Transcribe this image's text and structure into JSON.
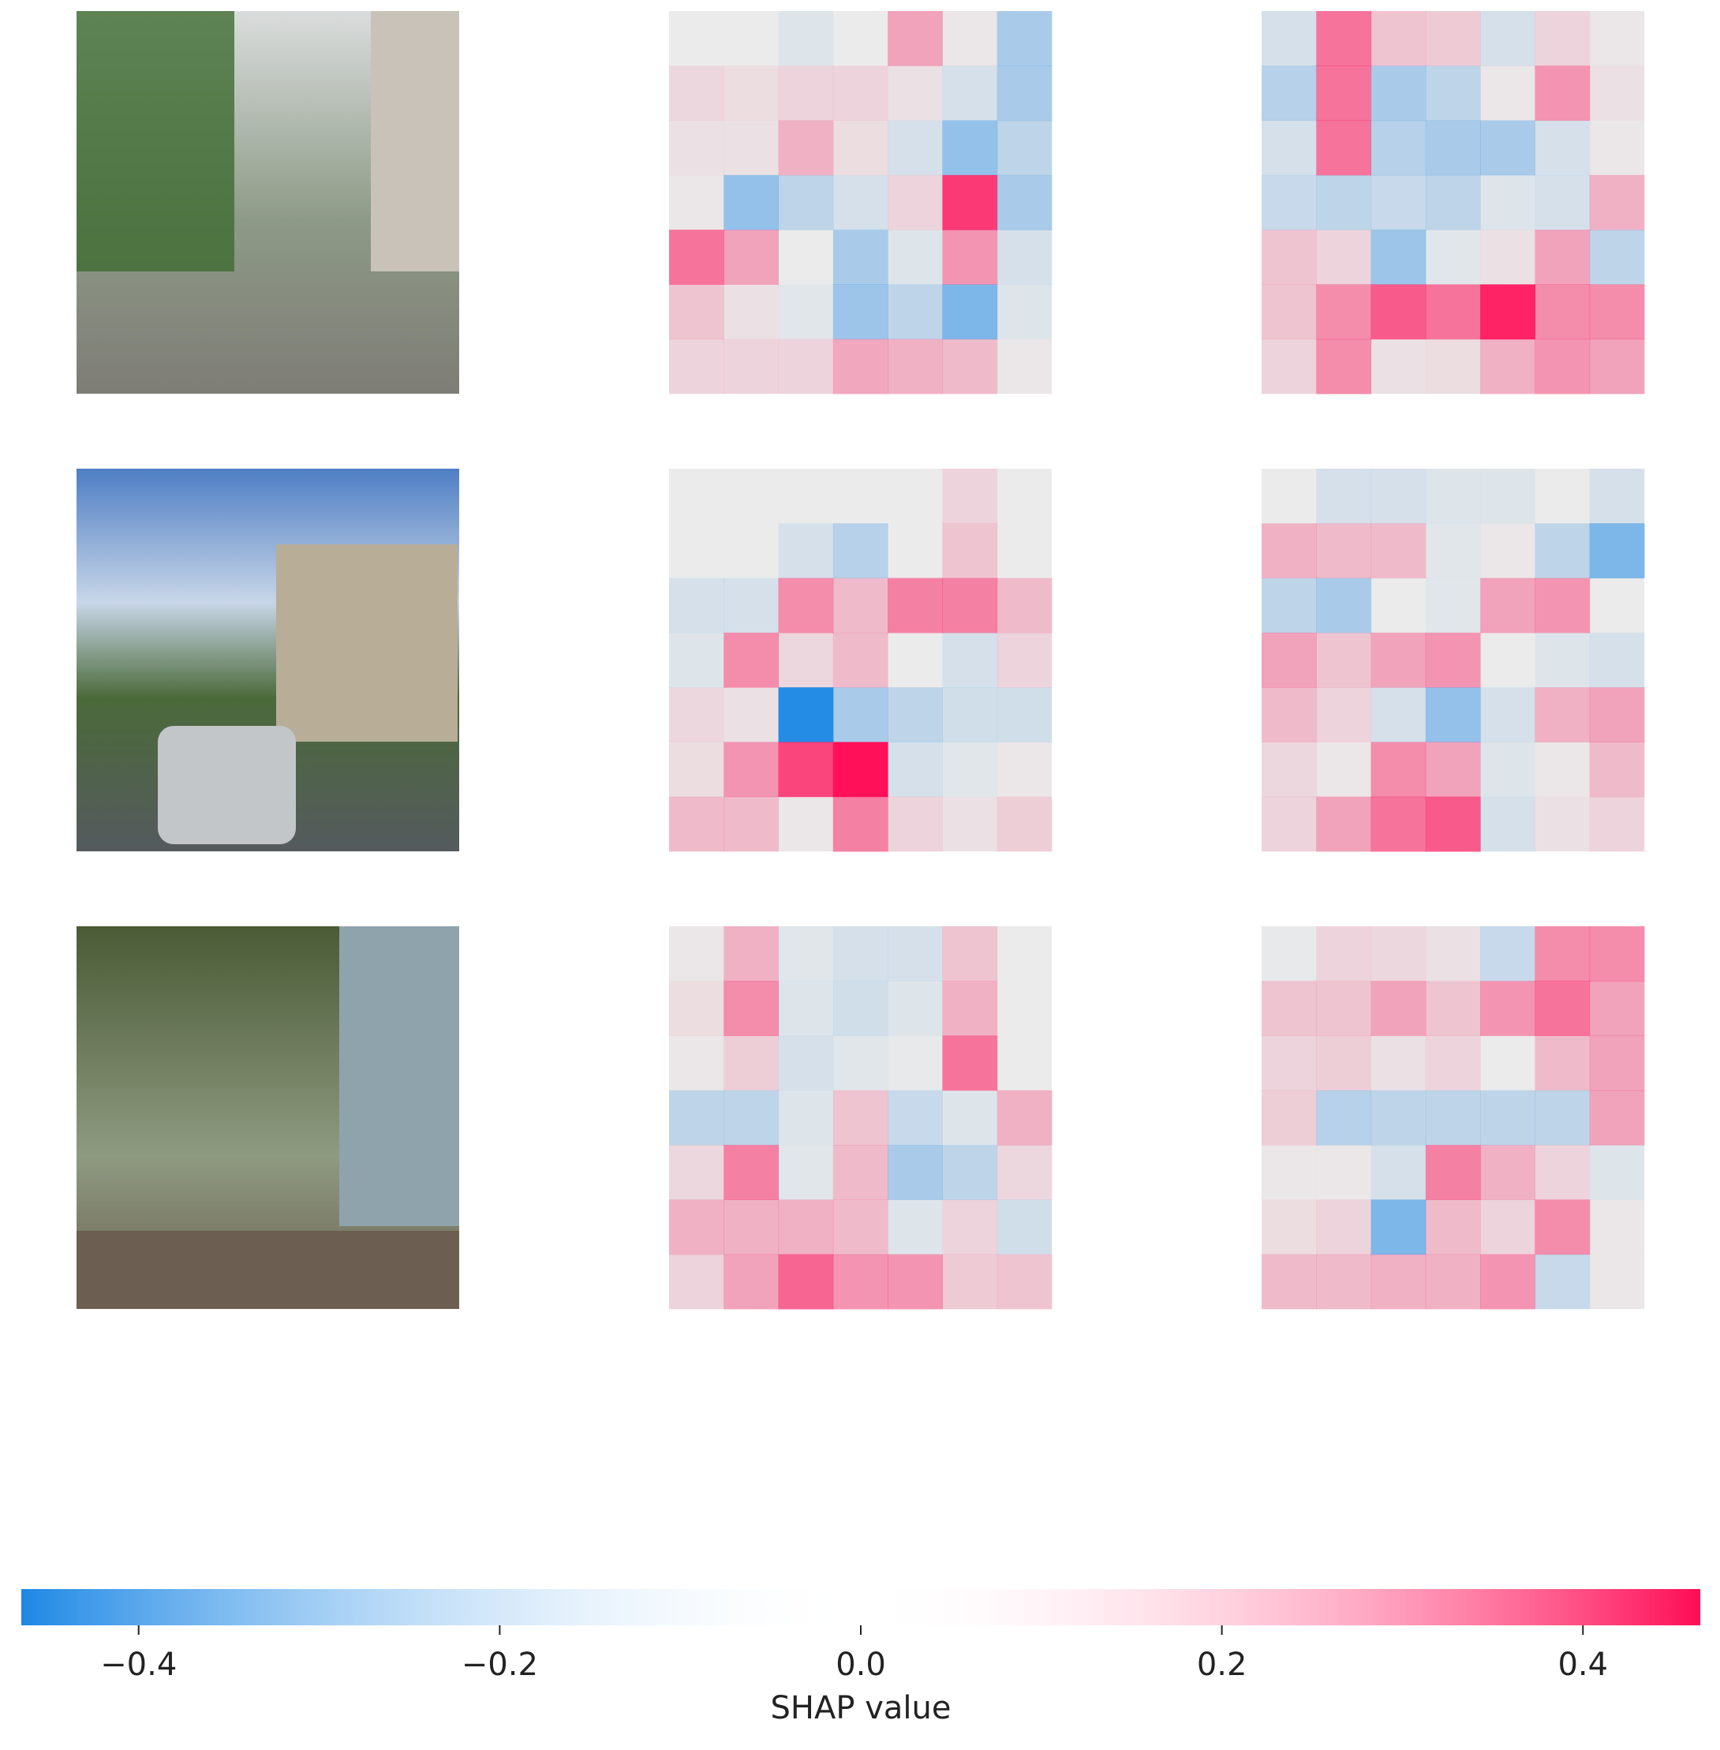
{
  "chart_data": {
    "type": "heatmap",
    "colors": [
      "#1e88e5",
      "#ffffff",
      "#ff0d57"
    ],
    "heatmaps": [
      [
        [
          [
            0,
            0,
            -0.03,
            0,
            0.15,
            0.01,
            -0.15
          ],
          [
            0.04,
            0.03,
            0.05,
            0.05,
            0.02,
            -0.05,
            -0.15
          ],
          [
            0.02,
            0.02,
            0.12,
            0.03,
            -0.05,
            -0.2,
            -0.1
          ],
          [
            0.01,
            -0.2,
            -0.1,
            -0.05,
            0.05,
            0.37,
            -0.15
          ],
          [
            0.25,
            0.15,
            0,
            -0.15,
            -0.03,
            0.18,
            -0.05
          ],
          [
            0.08,
            0.02,
            -0.02,
            -0.18,
            -0.1,
            -0.25,
            -0.03
          ],
          [
            0.05,
            0.05,
            0.05,
            0.14,
            0.12,
            0.1,
            0.01
          ]
        ],
        [
          [
            -0.05,
            0.25,
            0.08,
            0.07,
            -0.05,
            0.05,
            0.01
          ],
          [
            -0.12,
            0.25,
            -0.15,
            -0.1,
            0.01,
            0.18,
            0.02
          ],
          [
            -0.05,
            0.25,
            -0.12,
            -0.15,
            -0.15,
            -0.05,
            0.01
          ],
          [
            -0.08,
            -0.1,
            -0.08,
            -0.1,
            -0.03,
            -0.05,
            0.12
          ],
          [
            0.08,
            0.05,
            -0.18,
            -0.02,
            0.02,
            0.15,
            -0.1
          ],
          [
            0.08,
            0.2,
            0.3,
            0.25,
            0.42,
            0.2,
            0.2
          ],
          [
            0.05,
            0.2,
            0.02,
            0.03,
            0.12,
            0.18,
            0.15
          ]
        ]
      ],
      [
        [
          [
            0,
            0,
            0,
            0,
            0,
            0.05,
            0
          ],
          [
            0,
            0,
            -0.05,
            -0.12,
            0,
            0.08,
            0
          ],
          [
            -0.05,
            -0.05,
            0.2,
            0.1,
            0.22,
            0.22,
            0.1
          ],
          [
            -0.03,
            0.2,
            0.04,
            0.1,
            0,
            -0.05,
            0.05
          ],
          [
            0.04,
            0.02,
            -0.45,
            -0.15,
            -0.1,
            -0.06,
            -0.06
          ],
          [
            0.03,
            0.18,
            0.35,
            0.46,
            -0.05,
            -0.02,
            0.01
          ],
          [
            0.1,
            0.1,
            0.01,
            0.22,
            0.05,
            0.02,
            0.06
          ]
        ],
        [
          [
            0,
            -0.05,
            -0.05,
            -0.03,
            -0.03,
            0,
            -0.05
          ],
          [
            0.12,
            0.1,
            0.1,
            -0.02,
            0.01,
            -0.1,
            -0.25
          ],
          [
            -0.1,
            -0.15,
            0,
            -0.02,
            0.15,
            0.18,
            0
          ],
          [
            0.15,
            0.08,
            0.15,
            0.18,
            0,
            -0.03,
            -0.05
          ],
          [
            0.1,
            0.05,
            -0.05,
            -0.2,
            -0.05,
            0.12,
            0.15
          ],
          [
            0.04,
            0.01,
            0.2,
            0.15,
            -0.03,
            0.01,
            0.1
          ],
          [
            0.05,
            0.15,
            0.25,
            0.3,
            -0.05,
            0.02,
            0.05
          ]
        ]
      ],
      [
        [
          [
            0.01,
            0.12,
            -0.02,
            -0.05,
            -0.05,
            0.08,
            0
          ],
          [
            0.03,
            0.2,
            -0.03,
            -0.06,
            -0.03,
            0.12,
            0
          ],
          [
            0.01,
            0.06,
            -0.05,
            -0.02,
            -0.01,
            0.25,
            0
          ],
          [
            -0.1,
            -0.1,
            -0.03,
            0.08,
            -0.08,
            -0.03,
            0.12
          ],
          [
            0.04,
            0.22,
            -0.02,
            0.1,
            -0.15,
            -0.1,
            0.04
          ],
          [
            0.12,
            0.12,
            0.12,
            0.1,
            -0.03,
            0.05,
            -0.06
          ],
          [
            0.05,
            0.15,
            0.28,
            0.18,
            0.18,
            0.07,
            0.08
          ]
        ],
        [
          [
            -0.01,
            0.05,
            0.04,
            0.02,
            -0.08,
            0.2,
            0.2
          ],
          [
            0.08,
            0.08,
            0.15,
            0.08,
            0.18,
            0.25,
            0.15
          ],
          [
            0.05,
            0.06,
            0.02,
            0.05,
            0,
            0.1,
            0.15
          ],
          [
            0.06,
            -0.12,
            -0.1,
            -0.1,
            -0.1,
            -0.1,
            0.15
          ],
          [
            0.01,
            0.01,
            -0.05,
            0.22,
            0.12,
            0.05,
            -0.03
          ],
          [
            0.03,
            0.05,
            -0.25,
            0.1,
            0.05,
            0.2,
            0.01
          ],
          [
            0.1,
            0.1,
            0.12,
            0.12,
            0.18,
            -0.08,
            0.01
          ]
        ]
      ]
    ],
    "colorbar": {
      "label": "SHAP value",
      "lim": [
        -0.465,
        0.465
      ],
      "ticks": [
        {
          "value": -0.4,
          "label": "−0.4"
        },
        {
          "value": -0.2,
          "label": "−0.2"
        },
        {
          "value": 0,
          "label": "0.0"
        },
        0.2,
        0.4
      ]
    }
  }
}
